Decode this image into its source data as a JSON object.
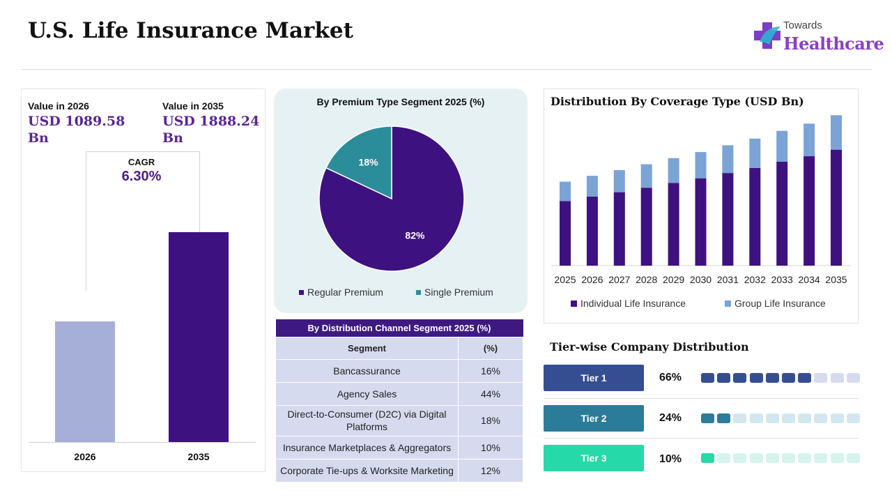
{
  "header": {
    "title": "U.S. Life Insurance Market",
    "logo_top": "Towards",
    "logo_main": "Healthcare"
  },
  "colors": {
    "dark_purple": "#3e1180",
    "light_lavender": "#a5afd8",
    "teal": "#2b8d9a",
    "group_blue": "#7ba3d6",
    "tier1": "#354e91",
    "tier2": "#2a7c98",
    "tier3": "#26d9a8"
  },
  "market_value": {
    "value_2026_label": "Value in 2026",
    "value_2026_amount": "USD 1089.58 Bn",
    "value_2035_label": "Value in 2035",
    "value_2035_amount": "USD 1888.24 Bn",
    "cagr_label": "CAGR",
    "cagr_value": "6.30%"
  },
  "distribution_channel": {
    "title": "By Distribution Channel Segment 2025 (%)",
    "columns": [
      "Segment",
      "(%)"
    ],
    "rows": [
      {
        "segment": "Bancassurance",
        "pct": "16%"
      },
      {
        "segment": "Agency Sales",
        "pct": "44%"
      },
      {
        "segment": "Direct-to-Consumer (D2C) via Digital Platforms",
        "pct": "18%"
      },
      {
        "segment": "Insurance Marketplaces & Aggregators",
        "pct": "10%"
      },
      {
        "segment": "Corporate Tie-ups & Worksite Marketing",
        "pct": "12%"
      }
    ]
  },
  "tiers": {
    "title": "Tier-wise Company Distribution",
    "items": [
      {
        "label": "Tier 1",
        "pct": "66%",
        "value": 66
      },
      {
        "label": "Tier 2",
        "pct": "24%",
        "value": 24
      },
      {
        "label": "Tier 3",
        "pct": "10%",
        "value": 10
      }
    ]
  },
  "chart_data": [
    {
      "type": "bar",
      "categories": [
        "2026",
        "2035"
      ],
      "values": [
        1089.58,
        1888.24
      ],
      "ylim": [
        0,
        2400
      ]
    },
    {
      "type": "pie",
      "title": "By Premium Type Segment 2025 (%)",
      "labels": [
        "Regular Premium",
        "Single Premium"
      ],
      "values": [
        82,
        18
      ],
      "data_labels": [
        "82%",
        "18%"
      ],
      "legend": "bottom"
    },
    {
      "type": "bar",
      "stacked": true,
      "title": "Distribution By Coverage Type (USD Bn)",
      "categories": [
        "2025",
        "2026",
        "2027",
        "2028",
        "2029",
        "2030",
        "2031",
        "2032",
        "2033",
        "2034",
        "2035"
      ],
      "series": [
        {
          "name": "Individual Life Insurance",
          "values": [
            762,
            815,
            866,
            919,
            975,
            1030,
            1092,
            1152,
            1225,
            1290,
            1367
          ]
        },
        {
          "name": "Group Life Insurance",
          "values": [
            228,
            244,
            260,
            276,
            292,
            309,
            327,
            346,
            364,
            384,
            406
          ]
        }
      ],
      "ylim": [
        0,
        1800
      ],
      "legend": "bottom",
      "grid": false
    }
  ]
}
